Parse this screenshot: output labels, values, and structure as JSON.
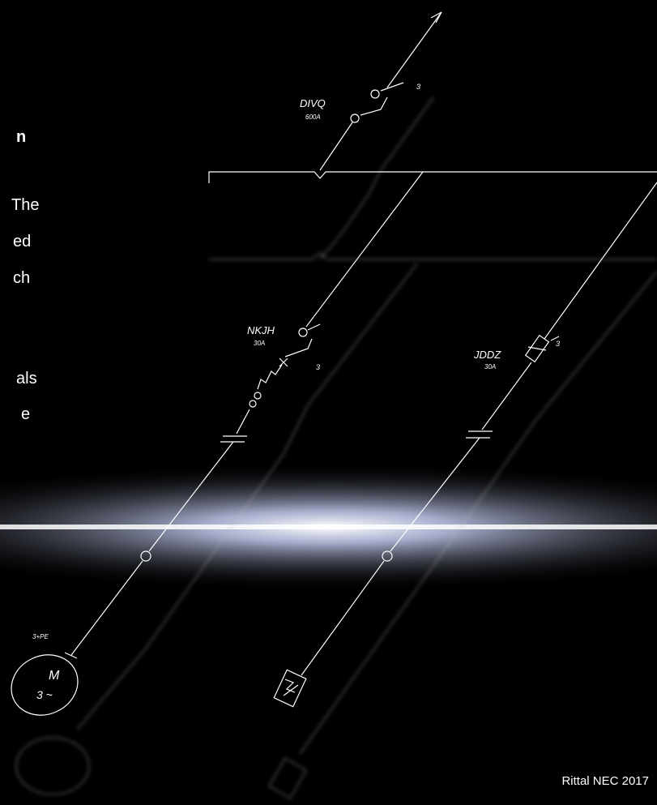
{
  "slide": {
    "body_fragments": [
      "n",
      "The",
      "ed",
      "ch",
      "als",
      "e"
    ],
    "footer": "Rittal NEC 2017"
  },
  "diagram": {
    "main_breaker": {
      "name": "DIVQ",
      "rating": "600A",
      "poles": "3"
    },
    "branch_1": {
      "name": "NKJH",
      "rating": "30A",
      "poles": "3",
      "load_conductors": "3+PE",
      "motor_symbol": "M",
      "motor_phase": "3 ~"
    },
    "branch_2": {
      "name": "JDDZ",
      "rating": "30A",
      "poles": "3"
    }
  }
}
